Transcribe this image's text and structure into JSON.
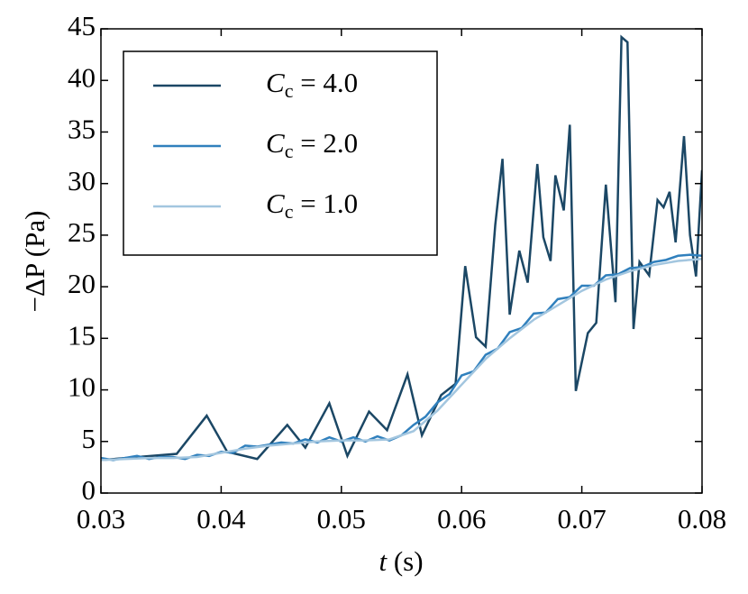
{
  "chart_data": {
    "type": "line",
    "xlabel": "t (s)",
    "ylabel": "−ΔP (Pa)",
    "xlim": [
      0.03,
      0.08
    ],
    "xticks": [
      0.03,
      0.04,
      0.05,
      0.06,
      0.07,
      0.08
    ],
    "ylim": [
      0,
      45
    ],
    "yticks": [
      0,
      5,
      10,
      15,
      20,
      25,
      30,
      35,
      40,
      45
    ],
    "legend": "upper left",
    "series": [
      {
        "name": "Cc = 4.0",
        "color": "#1b4765",
        "x": [
          0.03,
          0.0363,
          0.0388,
          0.0405,
          0.043,
          0.0455,
          0.047,
          0.049,
          0.0505,
          0.0523,
          0.0538,
          0.0555,
          0.0567,
          0.0583,
          0.0595,
          0.0603,
          0.0612,
          0.062,
          0.0628,
          0.0634,
          0.064,
          0.0648,
          0.0655,
          0.0663,
          0.0668,
          0.0674,
          0.0678,
          0.0685,
          0.069,
          0.0695,
          0.0705,
          0.0712,
          0.072,
          0.0728,
          0.0733,
          0.0738,
          0.0743,
          0.0748,
          0.0756,
          0.0763,
          0.0768,
          0.0773,
          0.0778,
          0.0785,
          0.079,
          0.0795,
          0.08
        ],
        "values": [
          3.2,
          3.8,
          7.5,
          4,
          3.3,
          6.6,
          4.4,
          8.7,
          3.6,
          7.9,
          6.1,
          11.5,
          5.6,
          9.5,
          10.6,
          22,
          15.1,
          14.2,
          26,
          32.4,
          17.3,
          23.5,
          20.4,
          31.9,
          24.8,
          22.5,
          30.8,
          27.4,
          35.7,
          9.9,
          15.5,
          16.5,
          29.9,
          18.5,
          44.2,
          43.7,
          15.9,
          22.4,
          21.1,
          28.4,
          27.7,
          29.2,
          24.3,
          34.6,
          25,
          21,
          31.3
        ]
      },
      {
        "name": "Cc = 2.0",
        "color": "#3080bd",
        "x": [
          0.03,
          0.031,
          0.032,
          0.033,
          0.034,
          0.035,
          0.036,
          0.037,
          0.038,
          0.039,
          0.04,
          0.041,
          0.042,
          0.043,
          0.044,
          0.045,
          0.046,
          0.047,
          0.048,
          0.049,
          0.05,
          0.051,
          0.052,
          0.053,
          0.054,
          0.055,
          0.056,
          0.057,
          0.058,
          0.059,
          0.06,
          0.061,
          0.062,
          0.063,
          0.064,
          0.065,
          0.066,
          0.067,
          0.068,
          0.069,
          0.07,
          0.071,
          0.072,
          0.073,
          0.074,
          0.075,
          0.076,
          0.077,
          0.078,
          0.079,
          0.08
        ],
        "values": [
          3.4,
          3.2,
          3.4,
          3.6,
          3.3,
          3.5,
          3.5,
          3.3,
          3.7,
          3.6,
          4.0,
          3.9,
          4.6,
          4.5,
          4.7,
          4.9,
          4.8,
          5.2,
          4.9,
          5.4,
          5.0,
          5.4,
          5.0,
          5.5,
          5.1,
          5.6,
          6.6,
          7.4,
          8.8,
          9.6,
          11.4,
          11.8,
          13.4,
          14.0,
          15.6,
          16.0,
          17.4,
          17.5,
          18.8,
          19.0,
          20.1,
          20.1,
          21.1,
          21.2,
          21.8,
          21.9,
          22.4,
          22.6,
          23.0,
          23.1,
          23.0
        ]
      },
      {
        "name": "Cc = 1.0",
        "color": "#a3c6df",
        "x": [
          0.03,
          0.032,
          0.034,
          0.036,
          0.038,
          0.04,
          0.042,
          0.044,
          0.046,
          0.048,
          0.05,
          0.052,
          0.054,
          0.056,
          0.058,
          0.06,
          0.062,
          0.064,
          0.066,
          0.068,
          0.07,
          0.072,
          0.074,
          0.076,
          0.078,
          0.08
        ],
        "values": [
          3.2,
          3.3,
          3.4,
          3.4,
          3.5,
          3.9,
          4.3,
          4.6,
          4.8,
          5.0,
          5.1,
          5.1,
          5.2,
          6.0,
          8.0,
          10.5,
          13.0,
          15.0,
          16.8,
          18.2,
          19.6,
          20.7,
          21.5,
          22.1,
          22.5,
          22.7
        ]
      }
    ]
  }
}
